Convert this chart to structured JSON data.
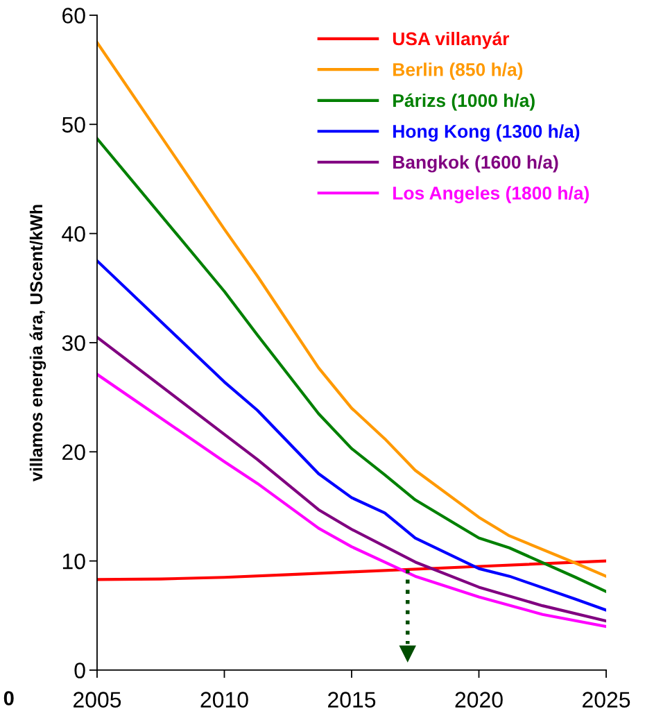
{
  "chart_data": {
    "type": "line",
    "ylabel": "villamos energia ára, UScent/kWh",
    "xlim": [
      2005,
      2025
    ],
    "xticks": [
      2005,
      2010,
      2015,
      2020,
      2025
    ],
    "ylim": [
      0,
      60
    ],
    "yticks": [
      0,
      10,
      20,
      30,
      40,
      50,
      60
    ],
    "grid": false,
    "legend": "top right",
    "marker": "none",
    "line_style": "solid",
    "series": [
      {
        "name": "USA villanyár",
        "color": "#ff0000",
        "x": [
          2005,
          2007.5,
          2010,
          2012.5,
          2015,
          2020,
          2025
        ],
        "values": [
          8.3,
          8.35,
          8.5,
          8.75,
          9.0,
          9.5,
          10.0
        ]
      },
      {
        "name": "Berlin (850 h/a)",
        "color": "#ff9900",
        "x": [
          2005,
          2010,
          2011.3,
          2013.7,
          2015,
          2016.3,
          2017.5,
          2020,
          2021.2,
          2023.8,
          2025
        ],
        "values": [
          57.5,
          40.4,
          36.1,
          27.7,
          24.0,
          21.2,
          18.3,
          14.0,
          12.3,
          9.8,
          8.6
        ]
      },
      {
        "name": "Párizs (1000 h/a)",
        "color": "#008000",
        "x": [
          2005,
          2010,
          2011.3,
          2013.7,
          2015,
          2016.3,
          2017.5,
          2020,
          2021.2,
          2023.8,
          2025
        ],
        "values": [
          48.7,
          34.7,
          30.7,
          23.5,
          20.3,
          17.9,
          15.6,
          12.1,
          11.2,
          8.5,
          7.2
        ]
      },
      {
        "name": "Hong Kong (1300 h/a)",
        "color": "#0000ff",
        "x": [
          2005,
          2010,
          2011.3,
          2013.7,
          2015,
          2016.3,
          2017.5,
          2020,
          2021.2,
          2023.8,
          2025
        ],
        "values": [
          37.5,
          26.4,
          23.8,
          18.0,
          15.8,
          14.4,
          12.1,
          9.3,
          8.6,
          6.5,
          5.5
        ]
      },
      {
        "name": "Bangkok (1600 h/a)",
        "color": "#800080",
        "x": [
          2005,
          2010,
          2011.3,
          2013.7,
          2015,
          2017.5,
          2020,
          2022.5,
          2025
        ],
        "values": [
          30.5,
          21.6,
          19.3,
          14.7,
          12.9,
          9.9,
          7.6,
          5.9,
          4.5
        ]
      },
      {
        "name": "Los Angeles (1800 h/a)",
        "color": "#ff00ff",
        "x": [
          2005,
          2010,
          2011.3,
          2013.7,
          2015,
          2017.5,
          2020,
          2022.5,
          2025
        ],
        "values": [
          27.1,
          19.1,
          17.1,
          13.0,
          11.3,
          8.6,
          6.7,
          5.1,
          4.0
        ]
      }
    ],
    "ref_lines": [
      {
        "axis": "x",
        "value": 2017.2,
        "color": "#004d00",
        "line_style": "dotted"
      }
    ],
    "annotations": [
      "0"
    ]
  }
}
